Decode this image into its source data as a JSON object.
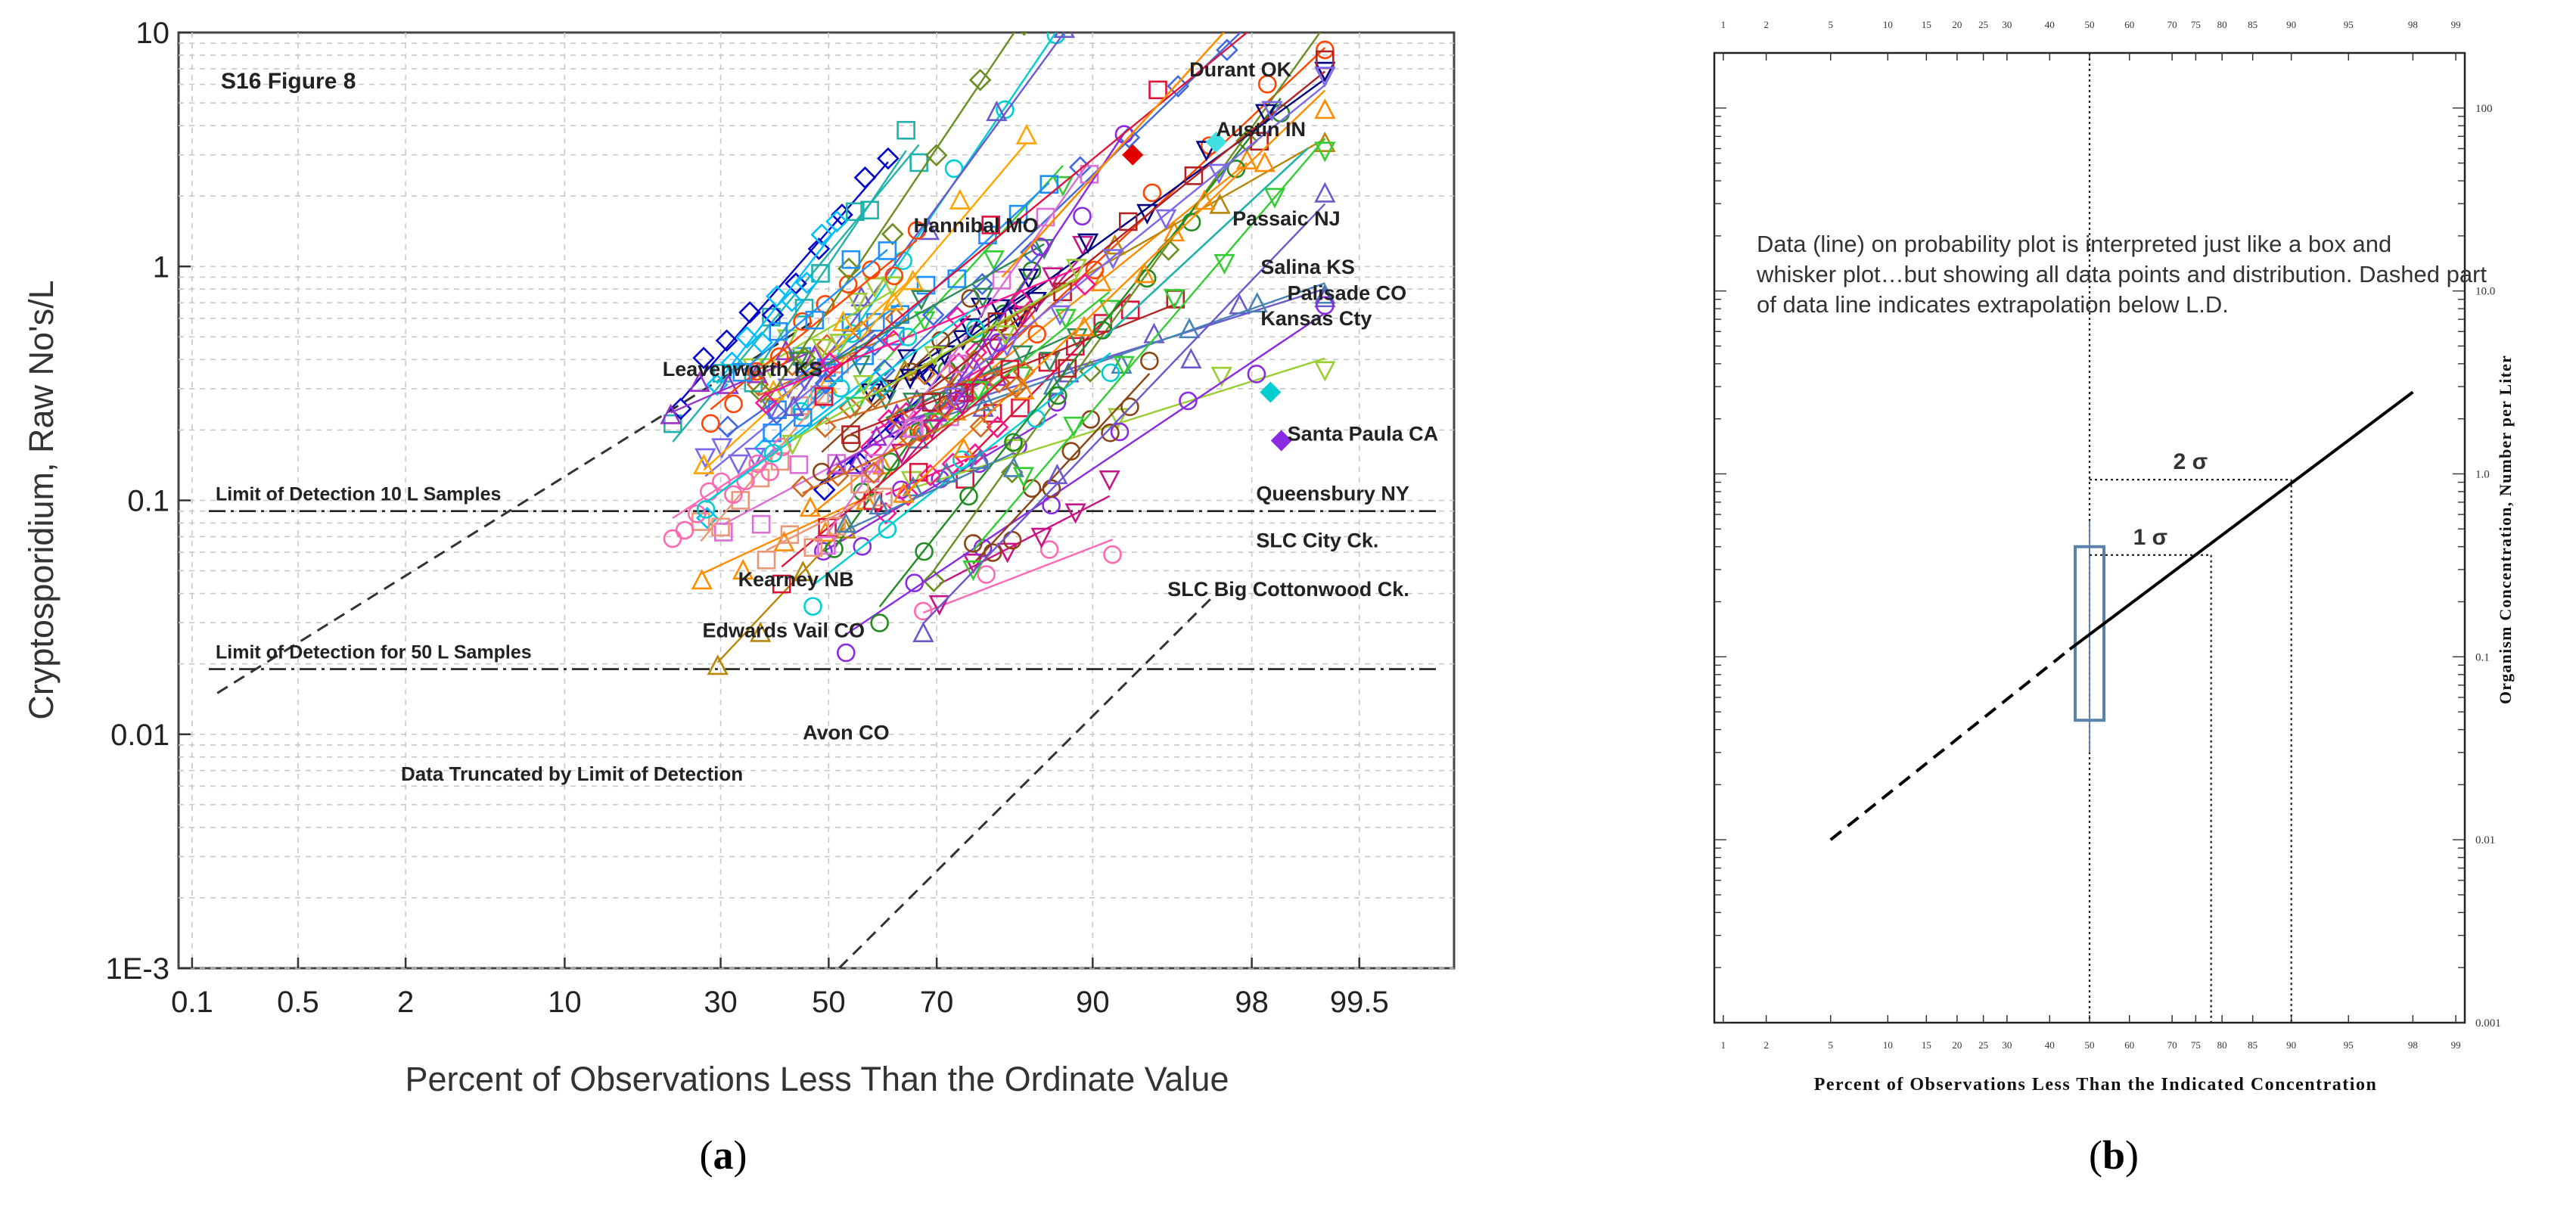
{
  "chart_data": [
    {
      "type": "scatter",
      "panel_label": "a",
      "figure_tag": "S16  Figure 8",
      "xlabel": "Percent of Observations Less Than the Ordinate Value",
      "ylabel": "Cryptosporidium, Raw No's/L",
      "x_scale": "probability",
      "y_scale": "log",
      "x_ticks": [
        {
          "p": 0.1,
          "label": "0.1"
        },
        {
          "p": 0.5,
          "label": "0.5"
        },
        {
          "p": 2,
          "label": "2"
        },
        {
          "p": 10,
          "label": "10"
        },
        {
          "p": 30,
          "label": "30"
        },
        {
          "p": 50,
          "label": "50"
        },
        {
          "p": 70,
          "label": "70"
        },
        {
          "p": 90,
          "label": "90"
        },
        {
          "p": 98,
          "label": "98"
        },
        {
          "p": 99.5,
          "label": "99.5"
        }
      ],
      "xlim": [
        0.1,
        99.9
      ],
      "y_ticks": [
        {
          "v": 0.001,
          "label": "1E-3"
        },
        {
          "v": 0.01,
          "label": "0.01"
        },
        {
          "v": 0.1,
          "label": "0.1"
        },
        {
          "v": 1,
          "label": "1"
        },
        {
          "v": 10,
          "label": "10"
        }
      ],
      "ylim": [
        0.001,
        10
      ],
      "reference_lines": [
        {
          "name": "Limit of Detection 10 L Samples",
          "y": 0.09
        },
        {
          "name": "Limit of Detection for 50 L Samples",
          "y": 0.019
        }
      ],
      "truncation_note": "Data Truncated by Limit of Detection",
      "truncation_lines": [
        {
          "from": [
            0.15,
            0.015
          ],
          "to": [
            48,
            0.6
          ]
        },
        {
          "from": [
            52,
            0.001
          ],
          "to": [
            97,
            0.04
          ]
        }
      ],
      "site_labels": [
        {
          "name": "Durant OK",
          "p": 96,
          "v": 6.5
        },
        {
          "name": "Austin IN",
          "p": 97,
          "v": 3.6
        },
        {
          "name": "Hannibal MO",
          "p": 66,
          "v": 1.4
        },
        {
          "name": "Passaic NJ",
          "p": 97.5,
          "v": 1.5
        },
        {
          "name": "Salina KS",
          "p": 98.2,
          "v": 0.93
        },
        {
          "name": "Palisade CO",
          "p": 98.7,
          "v": 0.72
        },
        {
          "name": "Kansas Cty",
          "p": 98.2,
          "v": 0.56
        },
        {
          "name": "Leavenworth KS",
          "p": 21,
          "v": 0.34
        },
        {
          "name": "Santa Paula CA",
          "p": 98.7,
          "v": 0.18
        },
        {
          "name": "Queensbury NY",
          "p": 98.1,
          "v": 0.1
        },
        {
          "name": "SLC City Ck.",
          "p": 98.1,
          "v": 0.063
        },
        {
          "name": "Kearney NB",
          "p": 33,
          "v": 0.043
        },
        {
          "name": "SLC Big Cottonwood Ck.",
          "p": 95,
          "v": 0.039
        },
        {
          "name": "Edwards Vail CO",
          "p": 27,
          "v": 0.026
        },
        {
          "name": "Avon CO",
          "p": 45,
          "v": 0.0095
        }
      ]
    },
    {
      "type": "line",
      "panel_label": "b",
      "xlabel": "Percent of Observations Less Than the Indicated Concentration",
      "ylabel": "Organism Concentration, Number per Liter",
      "x_scale": "probability",
      "y_scale": "log",
      "x_ticks": [
        "1",
        "2",
        "5",
        "10",
        "15",
        "20",
        "25",
        "30",
        "40",
        "50",
        "60",
        "70",
        "75",
        "80",
        "85",
        "90",
        "95",
        "98",
        "99"
      ],
      "y_ticks": [
        "100",
        "10.0",
        "1.0",
        "0.1",
        "0.01",
        "0.001"
      ],
      "ylim": [
        0.001,
        200
      ],
      "annotation": "Data (line) on probability plot is interpreted just like a box and whisker plot…but showing all data points and distribution. Dashed part of data line indicates extrapolation below L.D.",
      "series": [
        {
          "name": "data line (solid)",
          "points": [
            [
              45,
              0.11
            ],
            [
              98,
              2.8
            ]
          ]
        },
        {
          "name": "extrapolation below L.D. (dashed)",
          "points": [
            [
              5,
              0.01
            ],
            [
              45,
              0.11
            ]
          ]
        }
      ],
      "median_line": {
        "p": 50
      },
      "sigma_markers": [
        {
          "label": "1 σ",
          "p": 78,
          "v": 0.36
        },
        {
          "label": "2 σ",
          "p": 90,
          "v": 0.93
        }
      ],
      "box": {
        "q_low": 0.045,
        "q_high": 0.4,
        "whisker_low": 0.03,
        "whisker_high": 0.55
      }
    }
  ],
  "captions": {
    "a": "a",
    "b": "b"
  },
  "colors": {
    "background": "#ffffff",
    "plot_a_frame": "#444444",
    "grid": "#bdbdbd",
    "box": "#5b82a9",
    "data_line": "#000000"
  }
}
